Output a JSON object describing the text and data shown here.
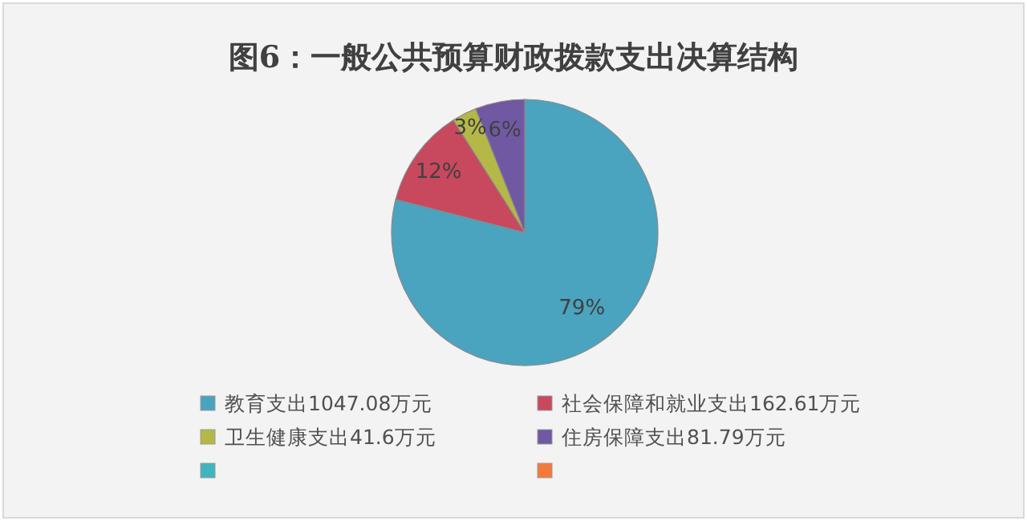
{
  "chart_data": {
    "type": "pie",
    "title": "图6：一般公共预算财政拨款支出决算结构",
    "categories": [
      "教育支出1047.08万元",
      "社会保障和就业支出162.61万元",
      "卫生健康支出41.6万元",
      "住房保障支出81.79万元",
      null,
      null
    ],
    "values": [
      79,
      12,
      3,
      6,
      0,
      0
    ],
    "value_labels": [
      "79%",
      "12%",
      "3%",
      "6%",
      null,
      null
    ],
    "colors": [
      "#4aa3bf",
      "#c8485e",
      "#b5b847",
      "#7158a3",
      "#3fb5bd",
      "#f57a3a"
    ],
    "legend": "bottom"
  }
}
